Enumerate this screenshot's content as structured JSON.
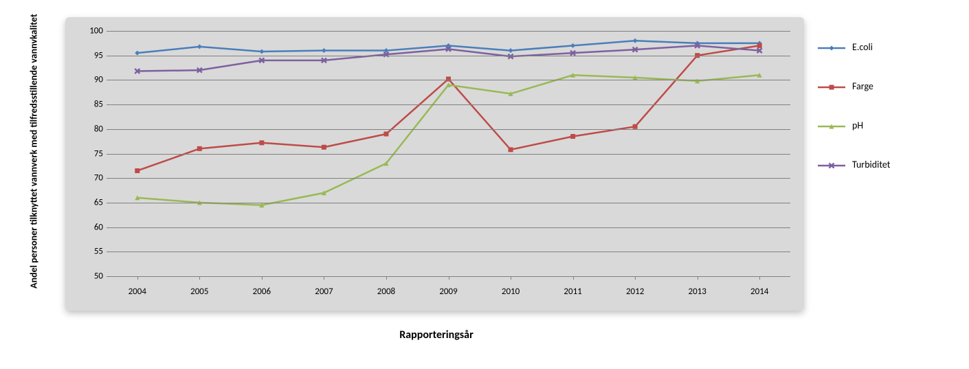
{
  "chart": {
    "type": "line",
    "background_color": "#d9d9d9",
    "grid_color": "#808080",
    "ylabel": "Andel personer tilknyttet vannverk med tilfredsstillende vannvkalitet",
    "xlabel": "Rapporteringsår",
    "ylabel_fontsize": 14,
    "xlabel_fontsize": 16,
    "ytick_fontsize": 13,
    "xtick_fontsize": 13,
    "ylim": [
      50,
      100
    ],
    "ytick_step": 5,
    "yticks": [
      50,
      55,
      60,
      65,
      70,
      75,
      80,
      85,
      90,
      95,
      100
    ],
    "categories": [
      "2004",
      "2005",
      "2006",
      "2007",
      "2008",
      "2009",
      "2010",
      "2011",
      "2012",
      "2013",
      "2014"
    ],
    "line_width": 2.5,
    "marker_size": 7,
    "series": [
      {
        "name": "E.coli",
        "color": "#4a7ebb",
        "marker": "diamond",
        "values": [
          95.5,
          96.8,
          95.8,
          96.0,
          96.0,
          97.0,
          96.0,
          97.0,
          98.0,
          97.5,
          97.5
        ]
      },
      {
        "name": "Farge",
        "color": "#be4b48",
        "marker": "square",
        "values": [
          71.5,
          76.0,
          77.2,
          76.3,
          79.0,
          90.2,
          75.8,
          78.5,
          80.5,
          95.0,
          97.0
        ]
      },
      {
        "name": "pH",
        "color": "#98b954",
        "marker": "triangle",
        "values": [
          66.0,
          65.0,
          64.5,
          67.0,
          73.0,
          89.0,
          87.2,
          91.0,
          90.5,
          89.8,
          91.0
        ]
      },
      {
        "name": "Turbiditet",
        "color": "#7d60a0",
        "marker": "x",
        "values": [
          91.8,
          92.0,
          94.0,
          94.0,
          95.2,
          96.3,
          94.8,
          95.5,
          96.2,
          97.0,
          96.0
        ]
      }
    ]
  }
}
